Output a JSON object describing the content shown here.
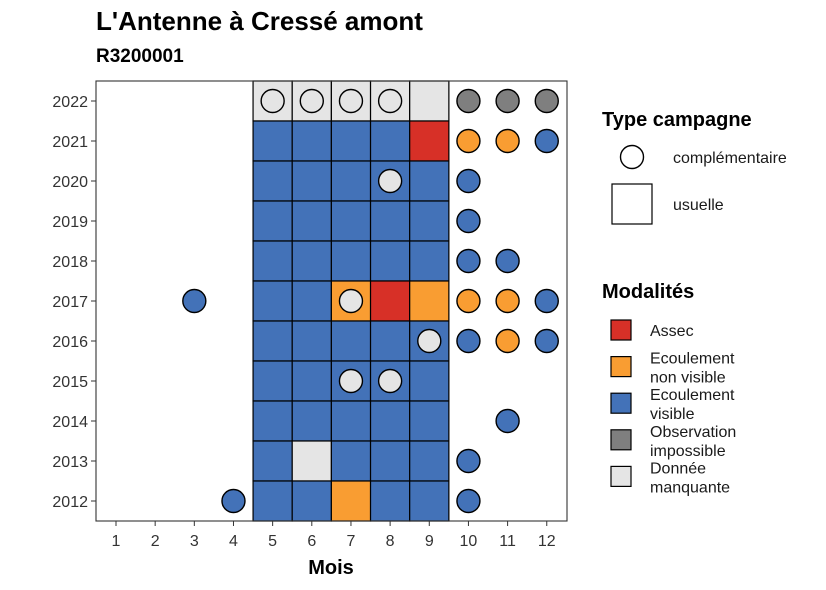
{
  "title": "L'Antenne à Cressé amont",
  "subtitle": "R3200001",
  "colors": {
    "Assec": "#d73027",
    "Ecoulement non visible": "#f99d32",
    "Ecoulement visible": "#4372b8",
    "Observation impossible": "#7f7f7f",
    "Donnée manquante": "#e5e5e5"
  },
  "chart_data": {
    "type": "heatmap",
    "title": "L'Antenne à Cressé amont",
    "subtitle": "R3200001",
    "xlabel": "Mois",
    "ylabel": "",
    "x_ticks": [
      1,
      2,
      3,
      4,
      5,
      6,
      7,
      8,
      9,
      10,
      11,
      12
    ],
    "y_ticks": [
      2012,
      2013,
      2014,
      2015,
      2016,
      2017,
      2018,
      2019,
      2020,
      2021,
      2022
    ],
    "shaded_months": [
      5,
      6,
      7,
      8,
      9
    ],
    "legend_type": {
      "title": "Type campagne",
      "items": [
        {
          "label": "complémentaire",
          "shape": "circle"
        },
        {
          "label": "usuelle",
          "shape": "square"
        }
      ]
    },
    "legend_modalites": {
      "title": "Modalités",
      "items": [
        {
          "key": "Assec",
          "lines": [
            "Assec"
          ]
        },
        {
          "key": "Ecoulement non visible",
          "lines": [
            "Ecoulement",
            "non visible"
          ]
        },
        {
          "key": "Ecoulement visible",
          "lines": [
            "Ecoulement",
            "visible"
          ]
        },
        {
          "key": "Observation impossible",
          "lines": [
            "Observation",
            "impossible"
          ]
        },
        {
          "key": "Donnée manquante",
          "lines": [
            "Donnée",
            "manquante"
          ]
        }
      ]
    },
    "points": [
      {
        "year": 2022,
        "month": 5,
        "type": "usuelle",
        "modalite": "Donnée manquante"
      },
      {
        "year": 2022,
        "month": 6,
        "type": "usuelle",
        "modalite": "Donnée manquante"
      },
      {
        "year": 2022,
        "month": 7,
        "type": "usuelle",
        "modalite": "Donnée manquante"
      },
      {
        "year": 2022,
        "month": 8,
        "type": "usuelle",
        "modalite": "Donnée manquante"
      },
      {
        "year": 2022,
        "month": 9,
        "type": "usuelle",
        "modalite": "Donnée manquante"
      },
      {
        "year": 2022,
        "month": 5,
        "type": "complémentaire",
        "modalite": "Donnée manquante"
      },
      {
        "year": 2022,
        "month": 6,
        "type": "complémentaire",
        "modalite": "Donnée manquante"
      },
      {
        "year": 2022,
        "month": 7,
        "type": "complémentaire",
        "modalite": "Donnée manquante"
      },
      {
        "year": 2022,
        "month": 8,
        "type": "complémentaire",
        "modalite": "Donnée manquante"
      },
      {
        "year": 2022,
        "month": 10,
        "type": "complémentaire",
        "modalite": "Observation impossible"
      },
      {
        "year": 2022,
        "month": 11,
        "type": "complémentaire",
        "modalite": "Observation impossible"
      },
      {
        "year": 2022,
        "month": 12,
        "type": "complémentaire",
        "modalite": "Observation impossible"
      },
      {
        "year": 2021,
        "month": 5,
        "type": "usuelle",
        "modalite": "Ecoulement visible"
      },
      {
        "year": 2021,
        "month": 6,
        "type": "usuelle",
        "modalite": "Ecoulement visible"
      },
      {
        "year": 2021,
        "month": 7,
        "type": "usuelle",
        "modalite": "Ecoulement visible"
      },
      {
        "year": 2021,
        "month": 8,
        "type": "usuelle",
        "modalite": "Ecoulement visible"
      },
      {
        "year": 2021,
        "month": 9,
        "type": "usuelle",
        "modalite": "Assec"
      },
      {
        "year": 2021,
        "month": 10,
        "type": "complémentaire",
        "modalite": "Ecoulement non visible"
      },
      {
        "year": 2021,
        "month": 11,
        "type": "complémentaire",
        "modalite": "Ecoulement non visible"
      },
      {
        "year": 2021,
        "month": 12,
        "type": "complémentaire",
        "modalite": "Ecoulement visible"
      },
      {
        "year": 2020,
        "month": 5,
        "type": "usuelle",
        "modalite": "Ecoulement visible"
      },
      {
        "year": 2020,
        "month": 6,
        "type": "usuelle",
        "modalite": "Ecoulement visible"
      },
      {
        "year": 2020,
        "month": 7,
        "type": "usuelle",
        "modalite": "Ecoulement visible"
      },
      {
        "year": 2020,
        "month": 8,
        "type": "usuelle",
        "modalite": "Ecoulement visible"
      },
      {
        "year": 2020,
        "month": 9,
        "type": "usuelle",
        "modalite": "Ecoulement visible"
      },
      {
        "year": 2020,
        "month": 8,
        "type": "complémentaire",
        "modalite": "Donnée manquante"
      },
      {
        "year": 2020,
        "month": 10,
        "type": "complémentaire",
        "modalite": "Ecoulement visible"
      },
      {
        "year": 2019,
        "month": 5,
        "type": "usuelle",
        "modalite": "Ecoulement visible"
      },
      {
        "year": 2019,
        "month": 6,
        "type": "usuelle",
        "modalite": "Ecoulement visible"
      },
      {
        "year": 2019,
        "month": 7,
        "type": "usuelle",
        "modalite": "Ecoulement visible"
      },
      {
        "year": 2019,
        "month": 8,
        "type": "usuelle",
        "modalite": "Ecoulement visible"
      },
      {
        "year": 2019,
        "month": 9,
        "type": "usuelle",
        "modalite": "Ecoulement visible"
      },
      {
        "year": 2019,
        "month": 10,
        "type": "complémentaire",
        "modalite": "Ecoulement visible"
      },
      {
        "year": 2018,
        "month": 5,
        "type": "usuelle",
        "modalite": "Ecoulement visible"
      },
      {
        "year": 2018,
        "month": 6,
        "type": "usuelle",
        "modalite": "Ecoulement visible"
      },
      {
        "year": 2018,
        "month": 7,
        "type": "usuelle",
        "modalite": "Ecoulement visible"
      },
      {
        "year": 2018,
        "month": 8,
        "type": "usuelle",
        "modalite": "Ecoulement visible"
      },
      {
        "year": 2018,
        "month": 9,
        "type": "usuelle",
        "modalite": "Ecoulement visible"
      },
      {
        "year": 2018,
        "month": 10,
        "type": "complémentaire",
        "modalite": "Ecoulement visible"
      },
      {
        "year": 2018,
        "month": 11,
        "type": "complémentaire",
        "modalite": "Ecoulement visible"
      },
      {
        "year": 2017,
        "month": 3,
        "type": "complémentaire",
        "modalite": "Ecoulement visible"
      },
      {
        "year": 2017,
        "month": 5,
        "type": "usuelle",
        "modalite": "Ecoulement visible"
      },
      {
        "year": 2017,
        "month": 6,
        "type": "usuelle",
        "modalite": "Ecoulement visible"
      },
      {
        "year": 2017,
        "month": 7,
        "type": "usuelle",
        "modalite": "Ecoulement non visible"
      },
      {
        "year": 2017,
        "month": 8,
        "type": "usuelle",
        "modalite": "Assec"
      },
      {
        "year": 2017,
        "month": 9,
        "type": "usuelle",
        "modalite": "Ecoulement non visible"
      },
      {
        "year": 2017,
        "month": 7,
        "type": "complémentaire",
        "modalite": "Donnée manquante"
      },
      {
        "year": 2017,
        "month": 10,
        "type": "complémentaire",
        "modalite": "Ecoulement non visible"
      },
      {
        "year": 2017,
        "month": 11,
        "type": "complémentaire",
        "modalite": "Ecoulement non visible"
      },
      {
        "year": 2017,
        "month": 12,
        "type": "complémentaire",
        "modalite": "Ecoulement visible"
      },
      {
        "year": 2016,
        "month": 5,
        "type": "usuelle",
        "modalite": "Ecoulement visible"
      },
      {
        "year": 2016,
        "month": 6,
        "type": "usuelle",
        "modalite": "Ecoulement visible"
      },
      {
        "year": 2016,
        "month": 7,
        "type": "usuelle",
        "modalite": "Ecoulement visible"
      },
      {
        "year": 2016,
        "month": 8,
        "type": "usuelle",
        "modalite": "Ecoulement visible"
      },
      {
        "year": 2016,
        "month": 9,
        "type": "usuelle",
        "modalite": "Ecoulement visible"
      },
      {
        "year": 2016,
        "month": 9,
        "type": "complémentaire",
        "modalite": "Donnée manquante"
      },
      {
        "year": 2016,
        "month": 10,
        "type": "complémentaire",
        "modalite": "Ecoulement visible"
      },
      {
        "year": 2016,
        "month": 11,
        "type": "complémentaire",
        "modalite": "Ecoulement non visible"
      },
      {
        "year": 2016,
        "month": 12,
        "type": "complémentaire",
        "modalite": "Ecoulement visible"
      },
      {
        "year": 2015,
        "month": 5,
        "type": "usuelle",
        "modalite": "Ecoulement visible"
      },
      {
        "year": 2015,
        "month": 6,
        "type": "usuelle",
        "modalite": "Ecoulement visible"
      },
      {
        "year": 2015,
        "month": 7,
        "type": "usuelle",
        "modalite": "Ecoulement visible"
      },
      {
        "year": 2015,
        "month": 8,
        "type": "usuelle",
        "modalite": "Ecoulement visible"
      },
      {
        "year": 2015,
        "month": 9,
        "type": "usuelle",
        "modalite": "Ecoulement visible"
      },
      {
        "year": 2015,
        "month": 7,
        "type": "complémentaire",
        "modalite": "Donnée manquante"
      },
      {
        "year": 2015,
        "month": 8,
        "type": "complémentaire",
        "modalite": "Donnée manquante"
      },
      {
        "year": 2014,
        "month": 5,
        "type": "usuelle",
        "modalite": "Ecoulement visible"
      },
      {
        "year": 2014,
        "month": 6,
        "type": "usuelle",
        "modalite": "Ecoulement visible"
      },
      {
        "year": 2014,
        "month": 7,
        "type": "usuelle",
        "modalite": "Ecoulement visible"
      },
      {
        "year": 2014,
        "month": 8,
        "type": "usuelle",
        "modalite": "Ecoulement visible"
      },
      {
        "year": 2014,
        "month": 9,
        "type": "usuelle",
        "modalite": "Ecoulement visible"
      },
      {
        "year": 2014,
        "month": 11,
        "type": "complémentaire",
        "modalite": "Ecoulement visible"
      },
      {
        "year": 2013,
        "month": 5,
        "type": "usuelle",
        "modalite": "Ecoulement visible"
      },
      {
        "year": 2013,
        "month": 6,
        "type": "usuelle",
        "modalite": "Donnée manquante"
      },
      {
        "year": 2013,
        "month": 7,
        "type": "usuelle",
        "modalite": "Ecoulement visible"
      },
      {
        "year": 2013,
        "month": 8,
        "type": "usuelle",
        "modalite": "Ecoulement visible"
      },
      {
        "year": 2013,
        "month": 9,
        "type": "usuelle",
        "modalite": "Ecoulement visible"
      },
      {
        "year": 2013,
        "month": 10,
        "type": "complémentaire",
        "modalite": "Ecoulement visible"
      },
      {
        "year": 2012,
        "month": 4,
        "type": "complémentaire",
        "modalite": "Ecoulement visible"
      },
      {
        "year": 2012,
        "month": 5,
        "type": "usuelle",
        "modalite": "Ecoulement visible"
      },
      {
        "year": 2012,
        "month": 6,
        "type": "usuelle",
        "modalite": "Ecoulement visible"
      },
      {
        "year": 2012,
        "month": 7,
        "type": "usuelle",
        "modalite": "Ecoulement non visible"
      },
      {
        "year": 2012,
        "month": 8,
        "type": "usuelle",
        "modalite": "Ecoulement visible"
      },
      {
        "year": 2012,
        "month": 9,
        "type": "usuelle",
        "modalite": "Ecoulement visible"
      },
      {
        "year": 2012,
        "month": 10,
        "type": "complémentaire",
        "modalite": "Ecoulement visible"
      }
    ]
  }
}
